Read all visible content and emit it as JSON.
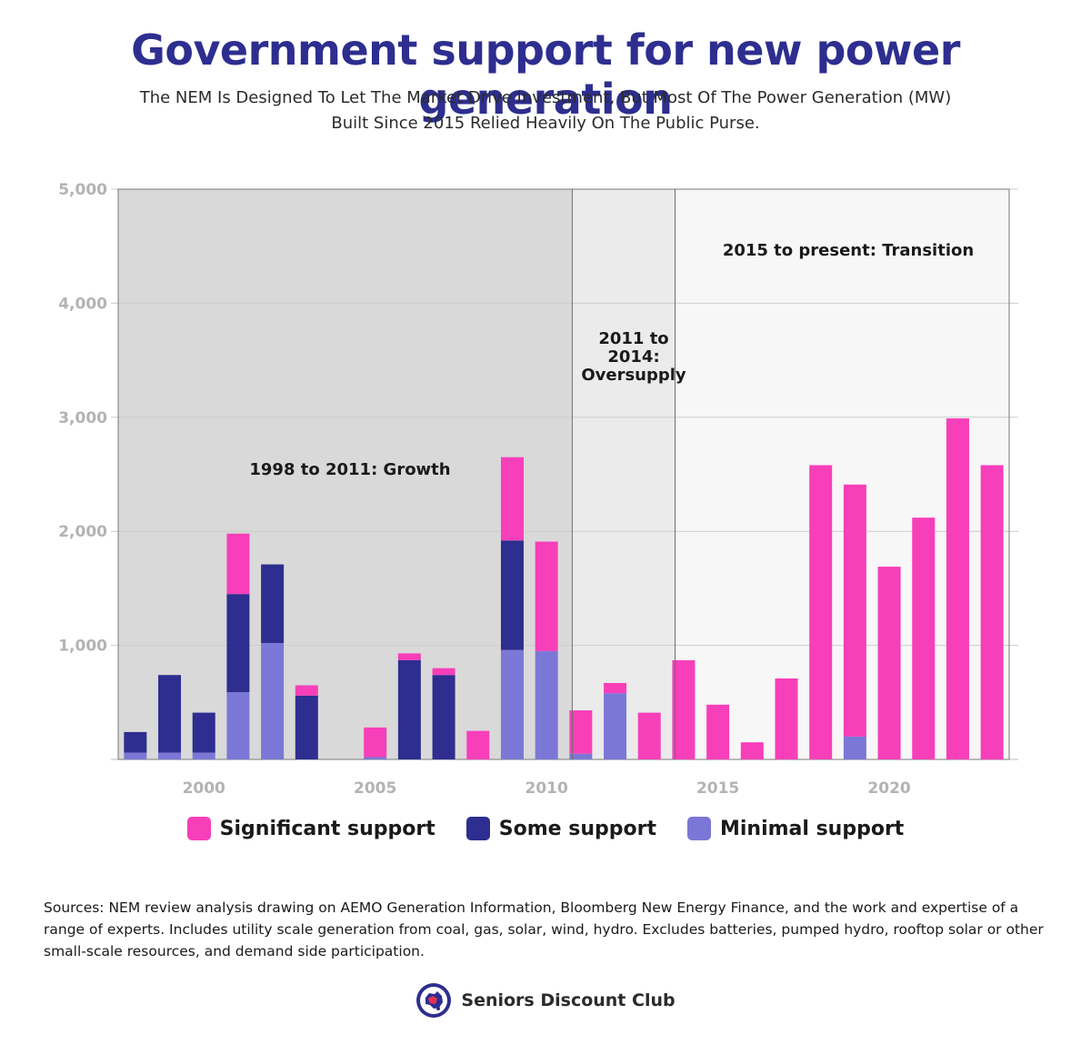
{
  "title": "Government support for new power generation",
  "subtitle_line1": "The NEM Is Designed To Let The Market Drive Investment, But Most Of The Power Generation (MW)",
  "subtitle_line2": "Built Since 2015 Relied Heavily On The Public Purse.",
  "eras": [
    {
      "label_lines": [
        "1998 to 2011: Growth"
      ],
      "from_year": 1997.5,
      "to_year": 2010.75,
      "shade": "#d9d9d9"
    },
    {
      "label_lines": [
        "2011 to",
        "2014:",
        "Oversupply"
      ],
      "from_year": 2010.75,
      "to_year": 2013.75,
      "shade": "#ebebeb"
    },
    {
      "label_lines": [
        "2015 to present: Transition"
      ],
      "from_year": 2013.75,
      "to_year": 2023.5,
      "shade": "#f7f7f7"
    }
  ],
  "legend": [
    {
      "label": "Significant support",
      "color": "#f73fb9"
    },
    {
      "label": "Some support",
      "color": "#2d2e8f"
    },
    {
      "label": "Minimal support",
      "color": "#7b77d6"
    }
  ],
  "colors": {
    "significant": "#f73fb9",
    "some": "#2d2e8f",
    "minimal": "#7b77d6",
    "grid": "#cccccc"
  },
  "chart_data": {
    "type": "bar",
    "stacked": true,
    "ylim": [
      0,
      5000
    ],
    "y_ticks": [
      "1,000",
      "2,000",
      "3,000",
      "4,000",
      "5,000"
    ],
    "y_tick_values": [
      1000,
      2000,
      3000,
      4000,
      5000
    ],
    "x_ticks": [
      "2000",
      "2005",
      "2010",
      "2015",
      "2020"
    ],
    "x_tick_values": [
      2000,
      2005,
      2010,
      2015,
      2020
    ],
    "x": [
      1998,
      1999,
      2000,
      2001,
      2002,
      2003,
      2004,
      2005,
      2006,
      2007,
      2008,
      2009,
      2010,
      2011,
      2012,
      2013,
      2014,
      2015,
      2016,
      2017,
      2018,
      2019,
      2020,
      2021,
      2022,
      2023
    ],
    "series": [
      {
        "name": "Minimal support",
        "values": [
          60,
          60,
          60,
          590,
          1020,
          0,
          0,
          20,
          0,
          0,
          0,
          960,
          950,
          50,
          580,
          0,
          0,
          0,
          0,
          0,
          0,
          200,
          0,
          0,
          0,
          0
        ]
      },
      {
        "name": "Some support",
        "values": [
          180,
          680,
          350,
          860,
          690,
          560,
          0,
          0,
          870,
          740,
          0,
          960,
          0,
          0,
          0,
          0,
          0,
          0,
          0,
          0,
          0,
          0,
          0,
          0,
          0,
          0
        ]
      },
      {
        "name": "Significant support",
        "values": [
          0,
          0,
          0,
          530,
          0,
          90,
          0,
          260,
          60,
          60,
          250,
          730,
          960,
          380,
          90,
          410,
          870,
          480,
          150,
          710,
          2580,
          2210,
          1690,
          2120,
          2990,
          2580
        ]
      }
    ]
  },
  "sources": "Sources: NEM review analysis drawing on AEMO Generation Information, Bloomberg New Energy Finance, and the work and expertise of a range of experts. Includes utility scale generation from coal, gas, solar, wind, hydro. Excludes batteries, pumped hydro, rooftop solar or other small-scale resources, and demand side participation.",
  "brand": {
    "name": "Seniors Discount Club",
    "logo_icon": "australia-map-tag-icon"
  }
}
